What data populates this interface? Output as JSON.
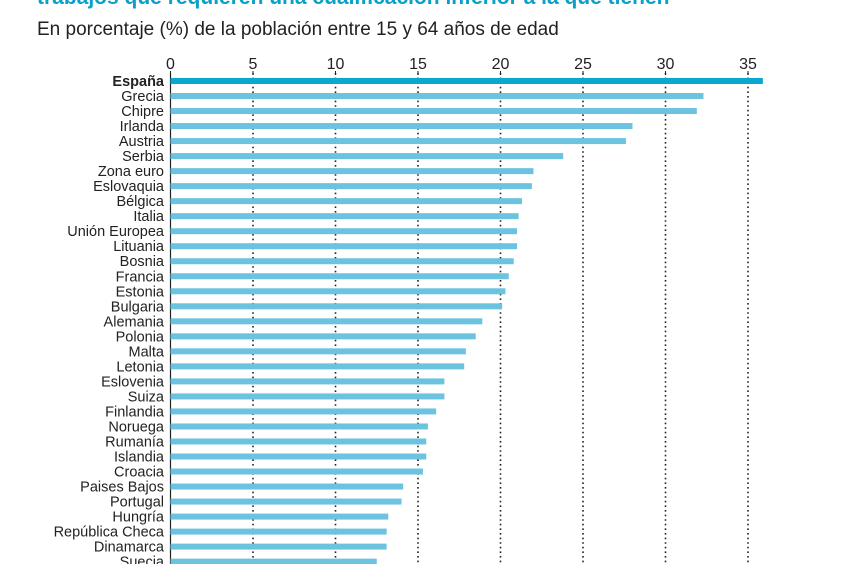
{
  "title": "trabajos que requieren una cualificación inferior a la que tienen",
  "subtitle": "En porcentaje (%) de la población entre 15 y 64 años de edad",
  "colors": {
    "bar": "#6cc3df",
    "highlight": "#0aa7cf",
    "title": "#0aa0c8",
    "text": "#222222"
  },
  "chart_data": {
    "type": "bar",
    "orientation": "horizontal",
    "title": "trabajos que requieren una cualificación inferior a la que tienen",
    "subtitle": "En porcentaje (%) de la población entre 15 y 64 años de edad",
    "xlim": [
      0,
      36
    ],
    "x_ticks": [
      0,
      5,
      10,
      15,
      20,
      25,
      30,
      35
    ],
    "dotted_gridlines": [
      5,
      10,
      15,
      20,
      25,
      30,
      35
    ],
    "highlight": "España",
    "categories": [
      "España",
      "Grecia",
      "Chipre",
      "Irlanda",
      "Austria",
      "Serbia",
      "Zona euro",
      "Eslovaquia",
      "Bélgica",
      "Italia",
      "Unión Europea",
      "Lituania",
      "Bosnia",
      "Francia",
      "Estonia",
      "Bulgaria",
      "Alemania",
      "Polonia",
      "Malta",
      "Letonia",
      "Eslovenia",
      "Suiza",
      "Finlandia",
      "Noruega",
      "Rumanía",
      "Islandia",
      "Croacia",
      "Paises Bajos",
      "Portugal",
      "Hungría",
      "República Checa",
      "Dinamarca",
      "Suecia"
    ],
    "values": [
      35.9,
      32.3,
      31.9,
      28.0,
      27.6,
      23.8,
      22.0,
      21.9,
      21.3,
      21.1,
      21.0,
      21.0,
      20.8,
      20.5,
      20.3,
      20.1,
      18.9,
      18.5,
      17.9,
      17.8,
      16.6,
      16.6,
      16.1,
      15.6,
      15.5,
      15.5,
      15.3,
      14.1,
      14.0,
      13.2,
      13.1,
      13.1,
      12.5
    ]
  }
}
